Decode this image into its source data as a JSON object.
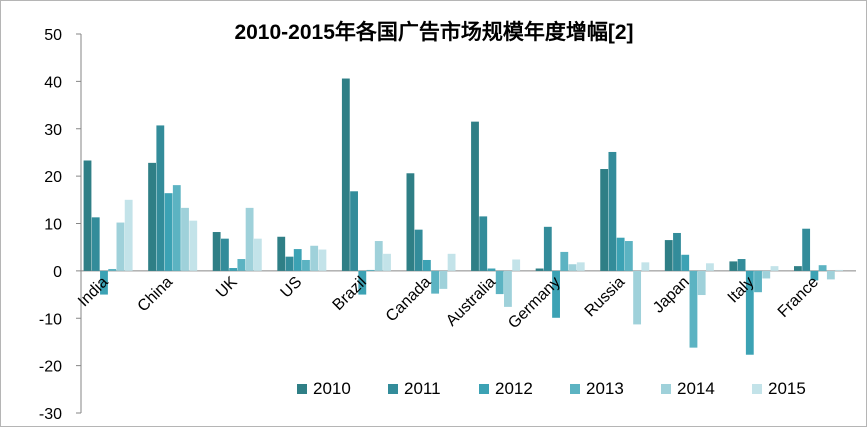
{
  "chart_data": {
    "type": "bar",
    "title": "2010-2015年各国广告市场规模年度增幅[2]",
    "xlabel": "",
    "ylabel": "",
    "ylim": [
      -30,
      50
    ],
    "yticks": [
      -30,
      -20,
      -10,
      0,
      10,
      20,
      30,
      40,
      50
    ],
    "grid": false,
    "legend_position": "bottom-right",
    "categories": [
      "India",
      "China",
      "UK",
      "US",
      "Brazil",
      "Canada",
      "Australia",
      "Germany",
      "Russia",
      "Japan",
      "Italy",
      "France"
    ],
    "series": [
      {
        "name": "2010",
        "color": "#2f7f86",
        "values": [
          23.3,
          22.8,
          8.2,
          7.2,
          40.6,
          20.6,
          31.5,
          0.5,
          21.5,
          6.5,
          2.0,
          1.0
        ]
      },
      {
        "name": "2011",
        "color": "#338c9a",
        "values": [
          11.3,
          30.7,
          6.8,
          3.0,
          16.8,
          8.7,
          11.5,
          9.3,
          25.1,
          8.0,
          2.5,
          8.9
        ]
      },
      {
        "name": "2012",
        "color": "#3ca2b4",
        "values": [
          -5.0,
          16.4,
          0.6,
          4.6,
          -5.0,
          2.3,
          0.5,
          -9.9,
          7.0,
          3.4,
          -17.7,
          -2.0
        ]
      },
      {
        "name": "2013",
        "color": "#5cb3c2",
        "values": [
          0.4,
          18.1,
          2.5,
          2.3,
          0.2,
          -4.8,
          -4.9,
          4.0,
          6.3,
          -16.2,
          -4.5,
          1.2
        ]
      },
      {
        "name": "2014",
        "color": "#9fd1da",
        "values": [
          10.2,
          13.3,
          13.3,
          5.3,
          6.3,
          -3.8,
          -7.6,
          1.4,
          -11.3,
          -5.1,
          -1.6,
          -1.8
        ]
      },
      {
        "name": "2015",
        "color": "#c3e3e9",
        "values": [
          15.0,
          10.6,
          6.8,
          4.5,
          3.6,
          3.6,
          2.4,
          1.8,
          1.8,
          1.6,
          1.0,
          0.2
        ]
      }
    ]
  }
}
